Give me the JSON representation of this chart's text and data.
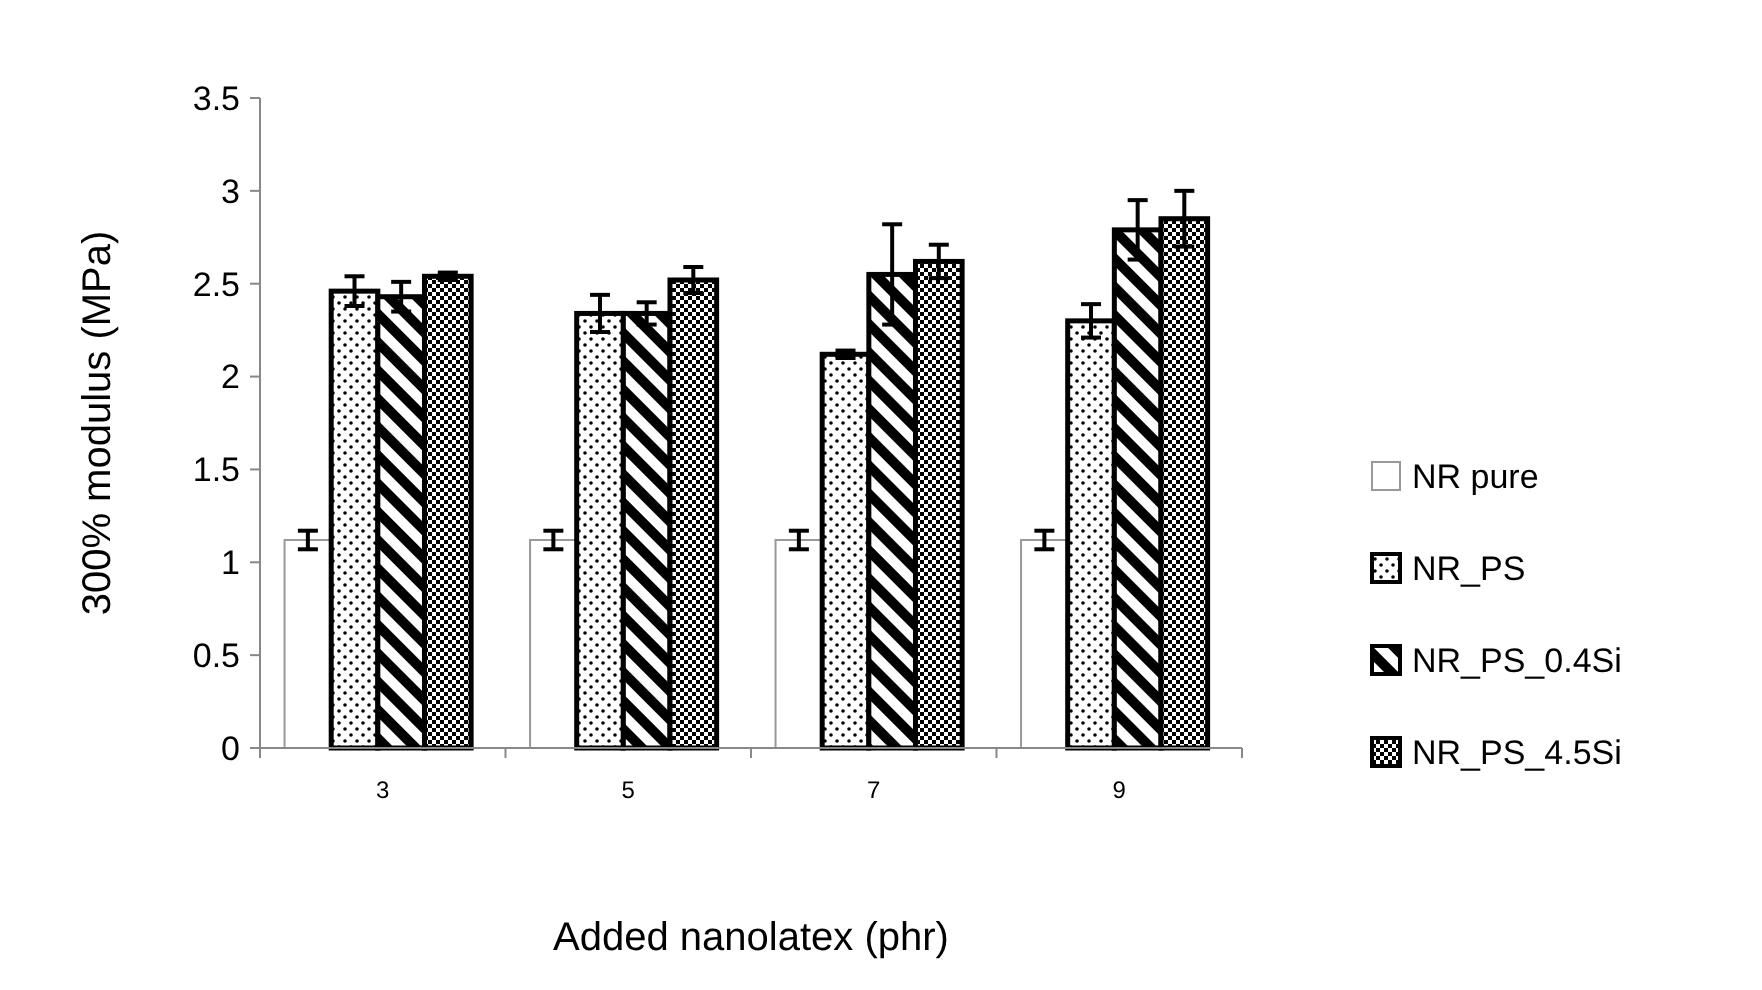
{
  "chart_data": {
    "type": "bar",
    "xlabel": "Added nanolatex (phr)",
    "ylabel": "300% modulus (MPa)",
    "categories": [
      "3",
      "5",
      "7",
      "9"
    ],
    "series": [
      {
        "name": "NR pure",
        "color": "#ffffff",
        "values": [
          1.12,
          1.12,
          1.12,
          1.12
        ],
        "errors": [
          0.05,
          0.05,
          0.05,
          0.05
        ]
      },
      {
        "name": "NR_PS",
        "color": "#000000",
        "values": [
          2.46,
          2.34,
          2.12,
          2.3
        ],
        "errors": [
          0.08,
          0.1,
          0.02,
          0.09
        ]
      },
      {
        "name": "NR_PS_0.4Si",
        "color": "#000000",
        "values": [
          2.43,
          2.34,
          2.55,
          2.79
        ],
        "errors": [
          0.08,
          0.06,
          0.27,
          0.16
        ]
      },
      {
        "name": "NR_PS_4.5Si",
        "color": "#000000",
        "values": [
          2.54,
          2.52,
          2.62,
          2.85
        ],
        "errors": [
          0.02,
          0.07,
          0.09,
          0.15
        ]
      }
    ],
    "ylim": [
      0,
      3.5
    ],
    "yticks": [
      0,
      {
        "value": 0.5,
        "label": "0.5"
      },
      1,
      {
        "value": 1.5,
        "label": "1.5"
      },
      2,
      {
        "value": 2.5,
        "label": "2.5"
      },
      3,
      {
        "value": 3.5,
        "label": "3.5"
      }
    ],
    "grid": false,
    "legend": "right"
  }
}
